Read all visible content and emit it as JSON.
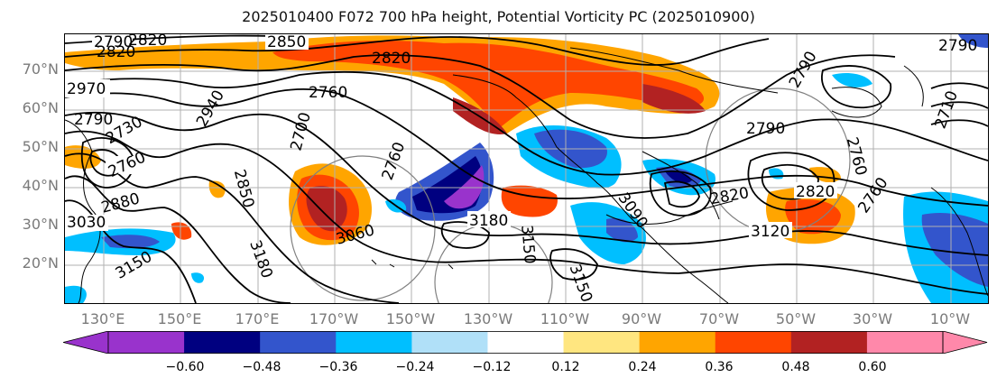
{
  "title": "2025010400 F072 700 hPa height, Potential Vorticity PC (2025010900)",
  "lat_labels": [
    "70°N",
    "60°N",
    "50°N",
    "40°N",
    "30°N",
    "20°N"
  ],
  "lon_labels": [
    "130°E",
    "150°E",
    "170°E",
    "170°W",
    "150°W",
    "130°W",
    "110°W",
    "90°W",
    "70°W",
    "50°W",
    "30°W",
    "10°W"
  ],
  "contour_labels": [
    "2790",
    "2820",
    "2850",
    "2820",
    "2970",
    "2940",
    "2760",
    "2700",
    "2820",
    "2790",
    "2760",
    "2730",
    "2880",
    "2850",
    "3030",
    "3150",
    "3180",
    "3060",
    "2760",
    "3180",
    "3150",
    "3150",
    "3090",
    "2820",
    "3120",
    "2790",
    "2760",
    "2790",
    "2710",
    "2820",
    "2760",
    "2790"
  ],
  "colorbar": {
    "tick_labels": [
      "−0.60",
      "−0.48",
      "−0.36",
      "−0.24",
      "−0.12",
      "0.12",
      "0.24",
      "0.36",
      "0.48",
      "0.60"
    ],
    "colors": [
      "#9933cc",
      "#000080",
      "#3355cc",
      "#00bfff",
      "#b0e0f8",
      "#ffffff",
      "#ffe680",
      "#ffa500",
      "#ff4500",
      "#b22222",
      "#ff88aa",
      "#ff88aa"
    ],
    "under_color": "#9933cc",
    "over_color": "#ff88aa"
  },
  "colors": {
    "contour": "#000000",
    "coast": "#000000",
    "grid": "#b0b0b0",
    "circle": "#808080"
  }
}
